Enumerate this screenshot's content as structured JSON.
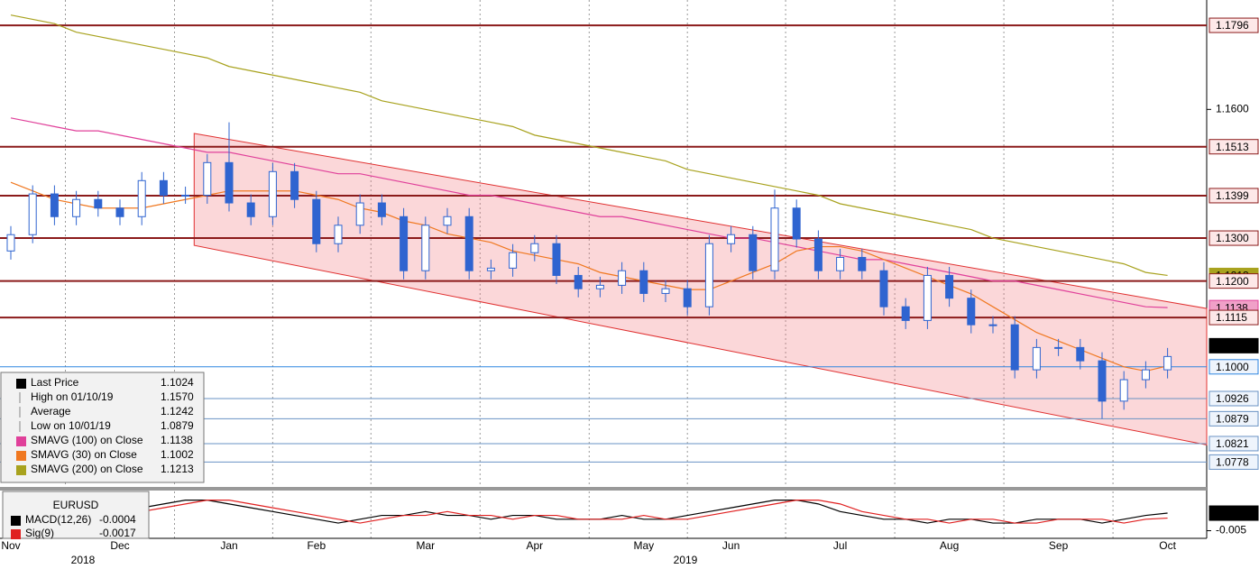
{
  "chart_data": {
    "type": "candlestick",
    "categories": [
      "Nov",
      null,
      null,
      null,
      null,
      "Dec",
      null,
      null,
      null,
      null,
      "Jan",
      null,
      null,
      null,
      "Feb",
      null,
      null,
      null,
      null,
      "Mar",
      null,
      null,
      null,
      null,
      "Apr",
      null,
      null,
      null,
      null,
      "May",
      null,
      null,
      null,
      "Jun",
      null,
      null,
      null,
      null,
      "Jul",
      null,
      null,
      null,
      null,
      "Aug",
      null,
      null,
      null,
      null,
      "Sep",
      null,
      null,
      null,
      null,
      "Oct"
    ],
    "years": [
      "2018",
      "2019"
    ],
    "up_color": "#ffffff",
    "down_color": "#2f64d0",
    "open": [
      1.127,
      1.1308,
      1.1403,
      1.135,
      1.139,
      1.137,
      1.135,
      1.1434,
      1.14,
      1.14,
      1.1476,
      1.1382,
      1.135,
      1.1455,
      1.139,
      1.1287,
      1.133,
      1.1382,
      1.135,
      1.1224,
      1.133,
      1.135,
      1.1224,
      1.123,
      1.1266,
      1.1287,
      1.1213,
      1.1182,
      1.119,
      1.1224,
      1.1171,
      1.1182,
      1.114,
      1.1287,
      1.1308,
      1.1224,
      1.137,
      1.1298,
      1.1224,
      1.1255,
      1.1224,
      1.114,
      1.1108,
      1.1213,
      1.116,
      1.1098,
      1.1098,
      1.0993,
      1.1045,
      1.1045,
      1.1014,
      1.092,
      1.097,
      1.0993
    ],
    "high": [
      1.1328,
      1.1423,
      1.1423,
      1.141,
      1.141,
      1.139,
      1.1454,
      1.1454,
      1.142,
      1.1496,
      1.157,
      1.1402,
      1.1475,
      1.1475,
      1.141,
      1.135,
      1.1402,
      1.1402,
      1.137,
      1.135,
      1.137,
      1.137,
      1.125,
      1.1286,
      1.1307,
      1.1307,
      1.1233,
      1.121,
      1.1244,
      1.1244,
      1.1202,
      1.1202,
      1.1307,
      1.1328,
      1.1328,
      1.1413,
      1.139,
      1.1318,
      1.1275,
      1.1275,
      1.1244,
      1.116,
      1.1233,
      1.1233,
      1.118,
      1.1118,
      1.1118,
      1.1065,
      1.1065,
      1.1065,
      1.1034,
      1.099,
      1.1013,
      1.1044
    ],
    "low": [
      1.125,
      1.1288,
      1.133,
      1.133,
      1.135,
      1.133,
      1.133,
      1.138,
      1.138,
      1.138,
      1.1362,
      1.133,
      1.133,
      1.137,
      1.1267,
      1.1267,
      1.131,
      1.133,
      1.1204,
      1.1204,
      1.131,
      1.1204,
      1.1204,
      1.121,
      1.1246,
      1.1193,
      1.1162,
      1.1162,
      1.117,
      1.1151,
      1.1151,
      1.112,
      1.112,
      1.1267,
      1.1204,
      1.1204,
      1.1278,
      1.1204,
      1.1204,
      1.1204,
      1.112,
      1.1088,
      1.1088,
      1.114,
      1.1078,
      1.1078,
      1.0973,
      1.0973,
      1.1025,
      1.0994,
      1.0879,
      1.09,
      1.095,
      1.0973
    ],
    "close": [
      1.1308,
      1.1403,
      1.135,
      1.139,
      1.137,
      1.135,
      1.1434,
      1.14,
      1.14,
      1.1476,
      1.1382,
      1.135,
      1.1455,
      1.139,
      1.1287,
      1.133,
      1.1382,
      1.135,
      1.1224,
      1.133,
      1.135,
      1.1224,
      1.123,
      1.1266,
      1.1287,
      1.1213,
      1.1182,
      1.119,
      1.1224,
      1.1171,
      1.1182,
      1.114,
      1.1287,
      1.1308,
      1.1224,
      1.137,
      1.1298,
      1.1224,
      1.1255,
      1.1224,
      1.114,
      1.1108,
      1.1213,
      1.116,
      1.1098,
      1.1098,
      1.0993,
      1.1045,
      1.1045,
      1.1014,
      1.092,
      1.097,
      1.0993,
      1.1024
    ],
    "series": [
      {
        "name": "SMAVG (200)",
        "color": "#a8a21e",
        "values": [
          1.182,
          1.181,
          1.18,
          1.178,
          1.177,
          1.176,
          1.175,
          1.174,
          1.173,
          1.172,
          1.17,
          1.169,
          1.168,
          1.167,
          1.166,
          1.165,
          1.164,
          1.162,
          1.161,
          1.16,
          1.159,
          1.158,
          1.157,
          1.156,
          1.154,
          1.153,
          1.152,
          1.151,
          1.15,
          1.149,
          1.148,
          1.146,
          1.145,
          1.144,
          1.143,
          1.142,
          1.141,
          1.14,
          1.138,
          1.137,
          1.136,
          1.135,
          1.134,
          1.133,
          1.132,
          1.13,
          1.129,
          1.128,
          1.127,
          1.126,
          1.125,
          1.124,
          1.122,
          1.1213
        ]
      },
      {
        "name": "SMAVG (100)",
        "color": "#e0409a",
        "values": [
          1.158,
          1.157,
          1.156,
          1.155,
          1.155,
          1.154,
          1.153,
          1.152,
          1.151,
          1.15,
          1.15,
          1.149,
          1.148,
          1.147,
          1.146,
          1.145,
          1.145,
          1.144,
          1.143,
          1.142,
          1.141,
          1.14,
          1.14,
          1.139,
          1.138,
          1.137,
          1.136,
          1.135,
          1.135,
          1.134,
          1.133,
          1.132,
          1.131,
          1.13,
          1.13,
          1.129,
          1.128,
          1.127,
          1.126,
          1.125,
          1.125,
          1.124,
          1.123,
          1.122,
          1.121,
          1.12,
          1.12,
          1.119,
          1.118,
          1.117,
          1.116,
          1.115,
          1.114,
          1.1138
        ]
      },
      {
        "name": "SMAVG (30)",
        "color": "#f07820",
        "values": [
          1.143,
          1.141,
          1.139,
          1.138,
          1.137,
          1.137,
          1.137,
          1.138,
          1.139,
          1.14,
          1.141,
          1.141,
          1.141,
          1.141,
          1.14,
          1.139,
          1.137,
          1.136,
          1.134,
          1.133,
          1.131,
          1.13,
          1.129,
          1.127,
          1.126,
          1.125,
          1.124,
          1.122,
          1.121,
          1.12,
          1.119,
          1.118,
          1.118,
          1.12,
          1.122,
          1.124,
          1.127,
          1.128,
          1.128,
          1.127,
          1.125,
          1.123,
          1.121,
          1.119,
          1.117,
          1.114,
          1.111,
          1.108,
          1.106,
          1.104,
          1.102,
          1.1,
          1.099,
          1.1002
        ]
      }
    ],
    "channel": {
      "upper": [
        1.1544,
        1.1136
      ],
      "lower": [
        1.1283,
        1.0818
      ]
    },
    "ylim": [
      1.072,
      1.1855
    ],
    "yticks": [
      {
        "value": 1.16,
        "label": "1.1600"
      }
    ],
    "levels": [
      {
        "value": 1.1796,
        "label": "1.1796",
        "color": "#8b1a1a"
      },
      {
        "value": 1.1513,
        "label": "1.1513",
        "color": "#8b1a1a"
      },
      {
        "value": 1.1399,
        "label": "1.1399",
        "color": "#8b1a1a"
      },
      {
        "value": 1.13,
        "label": "1.1300",
        "color": "#8b1a1a"
      },
      {
        "value": 1.12,
        "label": "1.1200",
        "color": "#8b1a1a"
      },
      {
        "value": 1.1115,
        "label": "1.1115",
        "color": "#8b1a1a"
      },
      {
        "value": 1.1,
        "label": "1.1000",
        "color": "#2f86e0"
      },
      {
        "value": 1.0926,
        "label": "1.0926",
        "color": "#6a93c4"
      },
      {
        "value": 1.0879,
        "label": "1.0879",
        "color": "#6a93c4"
      },
      {
        "value": 1.0821,
        "label": "1.0821",
        "color": "#6a93c4"
      },
      {
        "value": 1.0778,
        "label": "1.0778",
        "color": "#6a93c4"
      }
    ],
    "legend": [
      {
        "name": "Last Price",
        "value": "1.1024",
        "color": "#000000"
      },
      {
        "name": "High on 01/10/19",
        "value": "1.1570",
        "color": "#888888"
      },
      {
        "name": "Average",
        "value": "1.1242",
        "color": "#888888"
      },
      {
        "name": "Low on 10/01/19",
        "value": "1.0879",
        "color": "#888888"
      },
      {
        "name": "SMAVG (100)  on Close",
        "value": "1.1138",
        "color": "#e0409a"
      },
      {
        "name": "SMAVG (30)  on Close",
        "value": "1.1002",
        "color": "#f07820"
      },
      {
        "name": "SMAVG (200)  on Close",
        "value": "1.1213",
        "color": "#a8a21e"
      }
    ],
    "macd": {
      "title": "EURUSD",
      "ylim": [
        -0.007,
        0.0048
      ],
      "yticks": [
        -0.005
      ],
      "series": [
        {
          "name": "MACD(12,26)",
          "value_label": "-0.0004",
          "color": "#000000",
          "values": [
            -0.001,
            0,
            0.001,
            0,
            -0.001,
            0,
            0.001,
            0.002,
            0.003,
            0.003,
            0.002,
            0.001,
            0,
            -0.001,
            -0.002,
            -0.003,
            -0.002,
            -0.001,
            -0.001,
            0,
            -0.001,
            -0.001,
            -0.002,
            -0.001,
            -0.001,
            -0.002,
            -0.002,
            -0.002,
            -0.001,
            -0.002,
            -0.002,
            -0.001,
            0,
            0.001,
            0.002,
            0.003,
            0.003,
            0.002,
            0,
            -0.001,
            -0.002,
            -0.002,
            -0.003,
            -0.002,
            -0.002,
            -0.003,
            -0.003,
            -0.002,
            -0.002,
            -0.002,
            -0.003,
            -0.002,
            -0.001,
            -0.0004
          ]
        },
        {
          "name": "Sig(9)",
          "value_label": "-0.0017",
          "color": "#e02020",
          "values": [
            -0.001,
            -0.001,
            0,
            0.001,
            0,
            -0.001,
            0,
            0.001,
            0.002,
            0.003,
            0.003,
            0.002,
            0.001,
            0,
            -0.001,
            -0.002,
            -0.003,
            -0.002,
            -0.001,
            -0.001,
            0,
            -0.001,
            -0.001,
            -0.002,
            -0.001,
            -0.001,
            -0.002,
            -0.002,
            -0.002,
            -0.001,
            -0.002,
            -0.002,
            -0.001,
            0,
            0.001,
            0.002,
            0.003,
            0.003,
            0.002,
            0,
            -0.001,
            -0.002,
            -0.002,
            -0.003,
            -0.002,
            -0.002,
            -0.003,
            -0.003,
            -0.002,
            -0.002,
            -0.002,
            -0.003,
            -0.002,
            -0.0017
          ]
        }
      ]
    }
  }
}
